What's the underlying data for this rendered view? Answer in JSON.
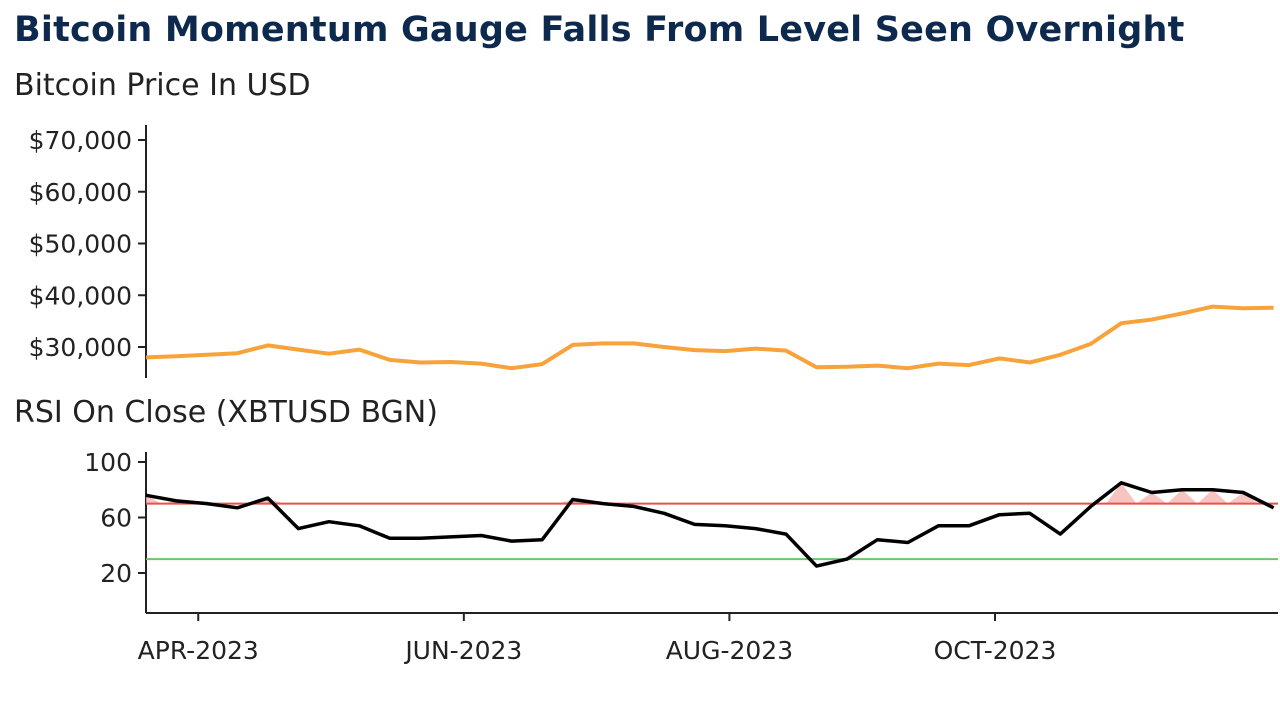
{
  "title": "Bitcoin Momentum Gauge Falls From Level Seen Overnight",
  "chart_data": [
    {
      "type": "line",
      "title": "Bitcoin Price In USD",
      "xlabel": "",
      "ylabel": "",
      "ylim": [
        26000,
        72000
      ],
      "y_ticks": [
        "$70,000",
        "$60,000",
        "$50,000",
        "$40,000",
        "$30,000"
      ],
      "y_tick_values": [
        70000,
        60000,
        50000,
        40000,
        30000
      ],
      "line_color": "#f7a23b",
      "series": [
        {
          "x": [
            "2023-03-20",
            "2023-03-27",
            "2023-04-03",
            "2023-04-10",
            "2023-04-17",
            "2023-04-24",
            "2023-05-01",
            "2023-05-08",
            "2023-05-15",
            "2023-05-22",
            "2023-05-29",
            "2023-06-05",
            "2023-06-12",
            "2023-06-19",
            "2023-06-26",
            "2023-07-03",
            "2023-07-10",
            "2023-07-17",
            "2023-07-24",
            "2023-07-31",
            "2023-08-07",
            "2023-08-14",
            "2023-08-21",
            "2023-08-28",
            "2023-09-04",
            "2023-09-11",
            "2023-09-18",
            "2023-09-25",
            "2023-10-02",
            "2023-10-09",
            "2023-10-16",
            "2023-10-23",
            "2023-10-30",
            "2023-11-06",
            "2023-11-13",
            "2023-11-20",
            "2023-11-27",
            "2023-12-04"
          ],
          "values": [
            28000,
            28200,
            28500,
            28800,
            30300,
            29500,
            28700,
            29500,
            27500,
            27000,
            27100,
            26800,
            25900,
            26700,
            30400,
            30700,
            30700,
            30000,
            29400,
            29200,
            29700,
            29300,
            26100,
            26200,
            26400,
            25900,
            26800,
            26500,
            27800,
            27000,
            28500,
            30600,
            34600,
            35300,
            36500,
            37800,
            37500,
            37600
          ]
        }
      ]
    },
    {
      "type": "line",
      "title": "RSI On Close (XBTUSD BGN)",
      "xlabel": "",
      "ylabel": "",
      "ylim": [
        0,
        100
      ],
      "y_ticks": [
        "100",
        "60",
        "20"
      ],
      "y_tick_values": [
        100,
        60,
        20
      ],
      "x_ticks": [
        "APR-2023",
        "JUN-2023",
        "AUG-2023",
        "OCT-2023"
      ],
      "x_tick_dates": [
        "2023-04-01",
        "2023-06-01",
        "2023-08-01",
        "2023-10-01"
      ],
      "reference_lines": [
        {
          "value": 70,
          "color": "#e8524a"
        },
        {
          "value": 30,
          "color": "#6cc56c"
        }
      ],
      "line_color": "#000000",
      "series": [
        {
          "x": [
            "2023-03-20",
            "2023-03-27",
            "2023-04-03",
            "2023-04-10",
            "2023-04-17",
            "2023-04-24",
            "2023-05-01",
            "2023-05-08",
            "2023-05-15",
            "2023-05-22",
            "2023-05-29",
            "2023-06-05",
            "2023-06-12",
            "2023-06-19",
            "2023-06-26",
            "2023-07-03",
            "2023-07-10",
            "2023-07-17",
            "2023-07-24",
            "2023-07-31",
            "2023-08-07",
            "2023-08-14",
            "2023-08-21",
            "2023-08-28",
            "2023-09-04",
            "2023-09-11",
            "2023-09-18",
            "2023-09-25",
            "2023-10-02",
            "2023-10-09",
            "2023-10-16",
            "2023-10-23",
            "2023-10-30",
            "2023-11-06",
            "2023-11-13",
            "2023-11-20",
            "2023-11-27",
            "2023-12-04"
          ],
          "values": [
            76,
            72,
            70,
            67,
            74,
            52,
            57,
            54,
            45,
            45,
            46,
            47,
            43,
            44,
            73,
            70,
            68,
            63,
            55,
            54,
            52,
            48,
            25,
            30,
            44,
            42,
            54,
            54,
            62,
            63,
            48,
            68,
            85,
            78,
            80,
            80,
            78,
            67
          ]
        }
      ]
    }
  ]
}
